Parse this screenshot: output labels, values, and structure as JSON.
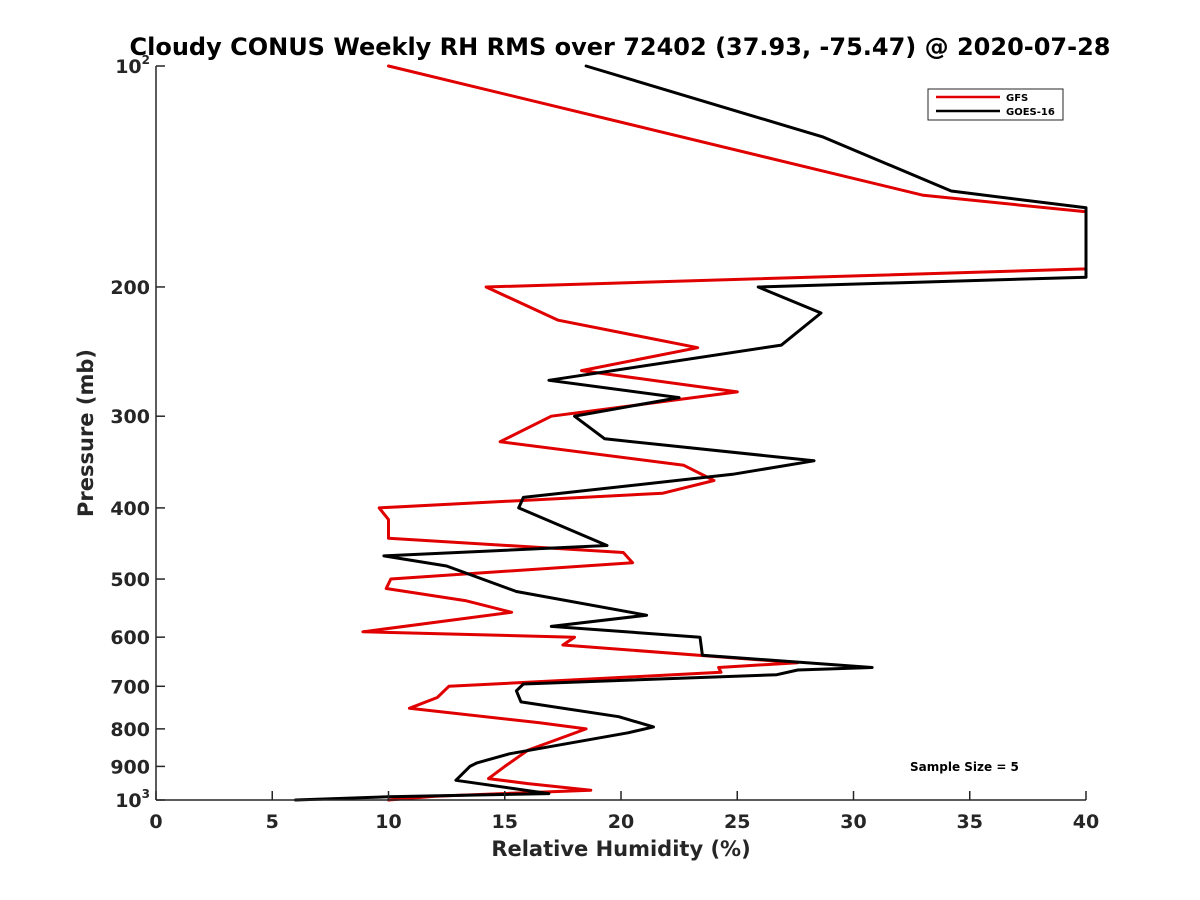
{
  "chart_data": {
    "type": "line",
    "title": "Cloudy CONUS Weekly RH RMS over 72402 (37.93, -75.47) @ 2020-07-28",
    "xlabel": "Relative Humidity (%)",
    "ylabel": "Pressure (mb)",
    "xlim": [
      0,
      40
    ],
    "ylim": [
      100,
      1000
    ],
    "y_scale": "log",
    "y_reversed": true,
    "grid": false,
    "legend_position": "top-right",
    "x_ticks": [
      0,
      5,
      10,
      15,
      20,
      25,
      30,
      35,
      40
    ],
    "y_ticks": [
      {
        "value": 100,
        "base": "10",
        "exp": "2"
      },
      {
        "value": 200,
        "label": "200"
      },
      {
        "value": 300,
        "label": "300"
      },
      {
        "value": 400,
        "label": "400"
      },
      {
        "value": 500,
        "label": "500"
      },
      {
        "value": 600,
        "label": "600"
      },
      {
        "value": 700,
        "label": "700"
      },
      {
        "value": 800,
        "label": "800"
      },
      {
        "value": 900,
        "label": "900"
      },
      {
        "value": 1000,
        "base": "10",
        "exp": "3"
      }
    ],
    "annotation": "Sample Size = 5",
    "series": [
      {
        "name": "GFS",
        "color": "#e00000",
        "points": [
          [
            10.0,
            100
          ],
          [
            33.0,
            150
          ],
          [
            40.0,
            158
          ],
          [
            40.0,
            189
          ],
          [
            14.2,
            200
          ],
          [
            17.3,
            222
          ],
          [
            23.3,
            242
          ],
          [
            18.3,
            260
          ],
          [
            25.0,
            278
          ],
          [
            17.0,
            300
          ],
          [
            14.8,
            325
          ],
          [
            22.7,
            350
          ],
          [
            24.0,
            367
          ],
          [
            21.8,
            382
          ],
          [
            9.6,
            400
          ],
          [
            10.0,
            415
          ],
          [
            10.0,
            440
          ],
          [
            20.1,
            460
          ],
          [
            20.5,
            475
          ],
          [
            10.1,
            500
          ],
          [
            9.9,
            515
          ],
          [
            13.3,
            535
          ],
          [
            15.3,
            555
          ],
          [
            8.9,
            590
          ],
          [
            18.0,
            600
          ],
          [
            17.5,
            615
          ],
          [
            27.6,
            650
          ],
          [
            24.2,
            660
          ],
          [
            24.3,
            670
          ],
          [
            12.6,
            700
          ],
          [
            12.1,
            725
          ],
          [
            10.9,
            750
          ],
          [
            16.5,
            785
          ],
          [
            18.5,
            800
          ],
          [
            16.0,
            855
          ],
          [
            15.0,
            900
          ],
          [
            14.3,
            935
          ],
          [
            16.0,
            950
          ],
          [
            18.7,
            970
          ],
          [
            12.0,
            988
          ],
          [
            10.0,
            1000
          ]
        ]
      },
      {
        "name": "GOES-16",
        "color": "#000000",
        "points": [
          [
            18.5,
            100
          ],
          [
            28.7,
            125
          ],
          [
            34.2,
            148
          ],
          [
            40.0,
            156
          ],
          [
            40.0,
            194
          ],
          [
            25.9,
            200
          ],
          [
            28.6,
            217
          ],
          [
            26.9,
            240
          ],
          [
            16.9,
            268
          ],
          [
            22.5,
            283
          ],
          [
            18.0,
            300
          ],
          [
            19.3,
            322
          ],
          [
            28.3,
            345
          ],
          [
            24.8,
            360
          ],
          [
            15.8,
            387
          ],
          [
            15.6,
            400
          ],
          [
            19.4,
            450
          ],
          [
            9.8,
            465
          ],
          [
            12.5,
            480
          ],
          [
            15.5,
            520
          ],
          [
            21.1,
            560
          ],
          [
            17.0,
            580
          ],
          [
            23.4,
            600
          ],
          [
            23.5,
            635
          ],
          [
            30.8,
            660
          ],
          [
            27.6,
            665
          ],
          [
            26.7,
            675
          ],
          [
            15.8,
            695
          ],
          [
            15.5,
            710
          ],
          [
            15.7,
            735
          ],
          [
            19.9,
            770
          ],
          [
            21.4,
            795
          ],
          [
            20.3,
            810
          ],
          [
            15.2,
            865
          ],
          [
            13.8,
            890
          ],
          [
            13.5,
            900
          ],
          [
            12.9,
            940
          ],
          [
            16.9,
            980
          ],
          [
            10.0,
            990
          ],
          [
            6.0,
            1000
          ]
        ]
      }
    ]
  }
}
